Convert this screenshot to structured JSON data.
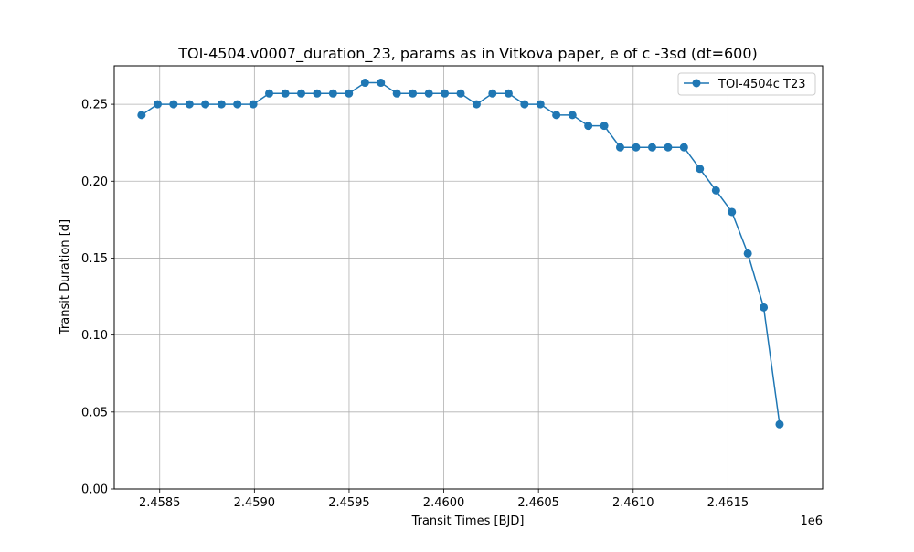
{
  "chart_data": {
    "type": "line",
    "title": "TOI-4504.v0007_duration_23, params as in Vitkova paper, e of c -3sd (dt=600)",
    "xlabel": "Transit Times [BJD]",
    "ylabel": "Transit Duration [d]",
    "x_offset_label": "1e6",
    "xlim": [
      2.45826,
      2.462
    ],
    "ylim": [
      0.0,
      0.275
    ],
    "xticks": [
      2.4585,
      2.459,
      2.4595,
      2.46,
      2.4605,
      2.461,
      2.4615
    ],
    "xtick_labels": [
      "2.4585",
      "2.4590",
      "2.4595",
      "2.4600",
      "2.4605",
      "2.4610",
      "2.4615"
    ],
    "yticks": [
      0.0,
      0.05,
      0.1,
      0.15,
      0.2,
      0.25
    ],
    "ytick_labels": [
      "0.00",
      "0.05",
      "0.10",
      "0.15",
      "0.20",
      "0.25"
    ],
    "grid": true,
    "legend_position": "top-right",
    "color": "#1f77b4",
    "series": [
      {
        "name": "TOI-4504c T23",
        "x": [
          2.458404,
          2.458489,
          2.458573,
          2.458657,
          2.458741,
          2.458826,
          2.45891,
          2.458994,
          2.459078,
          2.459163,
          2.459247,
          2.459331,
          2.459415,
          2.459499,
          2.459584,
          2.459668,
          2.459752,
          2.459836,
          2.459921,
          2.460005,
          2.460089,
          2.460173,
          2.460257,
          2.460342,
          2.460426,
          2.46051,
          2.460594,
          2.460679,
          2.460763,
          2.460847,
          2.460931,
          2.461015,
          2.4611,
          2.461184,
          2.461268,
          2.461352,
          2.461437,
          2.461521,
          2.461605,
          2.461689,
          2.461773
        ],
        "values": [
          0.243,
          0.25,
          0.25,
          0.25,
          0.25,
          0.25,
          0.25,
          0.25,
          0.257,
          0.257,
          0.257,
          0.257,
          0.257,
          0.257,
          0.264,
          0.264,
          0.257,
          0.257,
          0.257,
          0.257,
          0.257,
          0.25,
          0.257,
          0.257,
          0.25,
          0.25,
          0.243,
          0.243,
          0.236,
          0.236,
          0.222,
          0.222,
          0.222,
          0.222,
          0.222,
          0.208,
          0.194,
          0.18,
          0.153,
          0.118,
          0.042
        ]
      }
    ]
  }
}
